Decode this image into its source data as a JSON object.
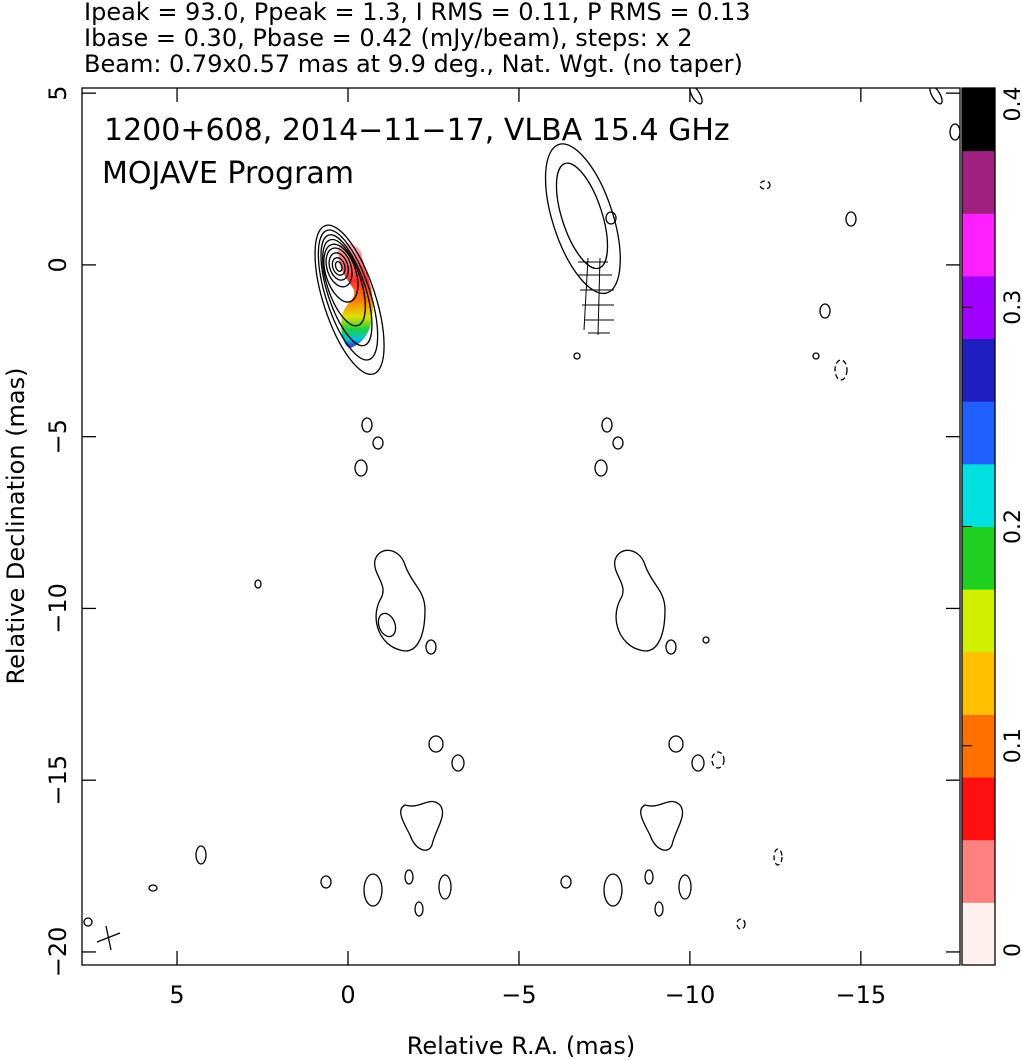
{
  "chart_data": {
    "type": "contour-map",
    "header": [
      "Ipeak = 93.0, Ppeak = 1.3, I RMS = 0.11, P RMS = 0.13",
      "Ibase = 0.30, Pbase = 0.42 (mJy/beam), steps: x 2",
      "Beam: 0.79x0.57 mas at 9.9 deg., Nat. Wgt. (no taper)"
    ],
    "annotations": [
      "1200+608, 2014−11−17, VLBA 15.4 GHz",
      "MOJAVE Program"
    ],
    "xlabel": "Relative R.A. (mas)",
    "ylabel": "Relative Declination (mas)",
    "xlim": [
      7.78,
      -17.9
    ],
    "ylim": [
      -20.38,
      5.15
    ],
    "xticks": [
      5,
      0,
      {
        "value": -5,
        "label": "−5"
      },
      {
        "value": -10,
        "label": "−10"
      },
      {
        "value": -15,
        "label": "−15"
      }
    ],
    "yticks": [
      5,
      0,
      {
        "value": -5,
        "label": "−5"
      },
      {
        "value": -10,
        "label": "−10"
      },
      {
        "value": -15,
        "label": "−15"
      },
      {
        "value": -20,
        "label": "−20"
      }
    ],
    "colorbar": {
      "lim": [
        0,
        0.4
      ],
      "ticks": [
        0,
        0.1,
        0.2,
        0.3,
        0.4
      ],
      "colormap": [
        "#fff0f0",
        "#ff8080",
        "#ff1010",
        "#ff7000",
        "#ffc000",
        "#d0f000",
        "#20d020",
        "#00e0e0",
        "#2060ff",
        "#2020c0",
        "#a000ff",
        "#ff20ff",
        "#a02080",
        "#000000"
      ]
    }
  }
}
